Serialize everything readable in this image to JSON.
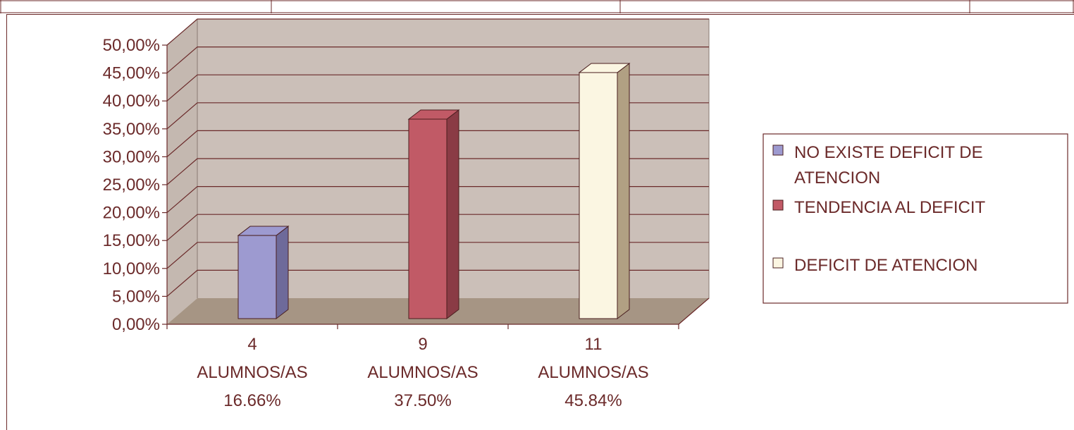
{
  "chart_data": {
    "type": "bar",
    "categories": [
      [
        "4",
        "ALUMNOS/AS",
        "16.66%"
      ],
      [
        "9",
        "ALUMNOS/AS",
        "37.50%"
      ],
      [
        "11",
        "ALUMNOS/AS",
        "45.84%"
      ]
    ],
    "series": [
      {
        "name": "NO EXISTE DEFICIT DE ATENCION",
        "legend_lines": [
          "NO EXISTE DEFICIT DE",
          "ATENCION"
        ],
        "category_index": 0,
        "value": 16.66,
        "color": "#9d9ad0",
        "dark": "#6e6a9a"
      },
      {
        "name": "TENDENCIA AL DEFICIT",
        "legend_lines": [
          "TENDENCIA AL DEFICIT"
        ],
        "category_index": 1,
        "value": 37.5,
        "color": "#c15a66",
        "dark": "#8a3b45"
      },
      {
        "name": "DEFICIT DE ATENCION",
        "legend_lines": [
          "DEFICIT DE ATENCION"
        ],
        "category_index": 2,
        "value": 45.84,
        "color": "#fbf6e2",
        "dark": "#b1a083"
      }
    ],
    "y_ticks": [
      "0,00%",
      "5,00%",
      "10,00%",
      "15,00%",
      "20,00%",
      "25,00%",
      "30,00%",
      "35,00%",
      "40,00%",
      "45,00%",
      "50,00%"
    ],
    "ylim": [
      0,
      50
    ],
    "grid": true,
    "legend_position": "right",
    "colors": {
      "wall": "#cbbfb8",
      "floor": "#a69584",
      "side_wall": "#c4b8b0",
      "gridline": "#6b2a2a",
      "text": "#6b2a2a"
    }
  }
}
